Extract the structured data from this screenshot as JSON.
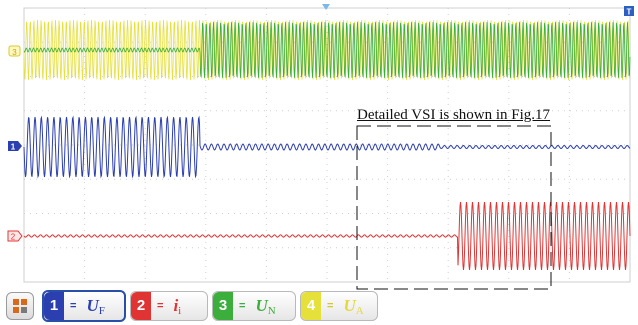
{
  "annotation": "Detailed VSI is shown in Fig.17",
  "channels": [
    {
      "num": "1",
      "label": "U",
      "sub": "F",
      "color": "#2c3fb0",
      "dc": "="
    },
    {
      "num": "2",
      "label": "i",
      "sub": "i",
      "color": "#e03434",
      "dc": "="
    },
    {
      "num": "3",
      "label": "U",
      "sub": "N",
      "color": "#3cae3c",
      "dc": "="
    },
    {
      "num": "4",
      "label": "U",
      "sub": "A",
      "color": "#e6e03a",
      "dc": "="
    }
  ],
  "markers": {
    "ch1": "1",
    "ch2": "2",
    "ch3": "3",
    "trigger": "T"
  },
  "colors": {
    "ch1": "#2c3fb0",
    "ch2": "#e03434",
    "ch3": "#3cae3c",
    "ch4": "#e6e03a",
    "grid": "#cfcfcf"
  }
}
